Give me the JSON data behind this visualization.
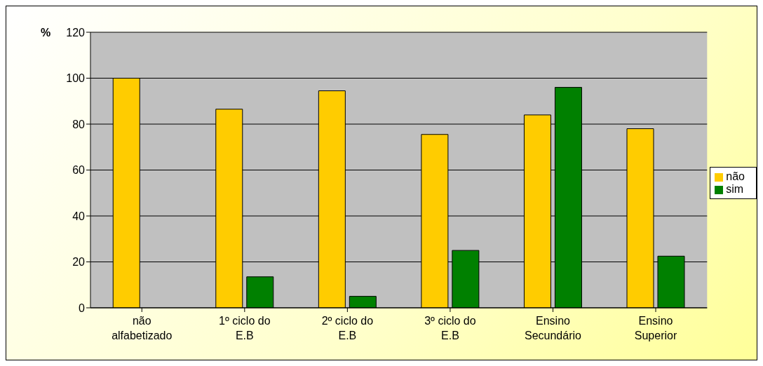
{
  "chart_data": {
    "type": "bar",
    "ylabel": "%",
    "categories": [
      "não alfabetizado",
      "1º ciclo do E.B",
      "2º ciclo do E.B",
      "3º ciclo do E.B",
      "Ensino Secundário",
      "Ensino Superior"
    ],
    "series": [
      {
        "name": "não",
        "color": "#ffcc00",
        "values": [
          100,
          86.5,
          94.5,
          75.5,
          84,
          78
        ]
      },
      {
        "name": "sim",
        "color": "#008000",
        "values": [
          0,
          13.5,
          5,
          25,
          96,
          22.5
        ]
      }
    ],
    "ylim": [
      0,
      120
    ],
    "yticks": [
      0,
      20,
      40,
      60,
      80,
      100,
      120
    ],
    "grid": "y",
    "legend": "right"
  }
}
